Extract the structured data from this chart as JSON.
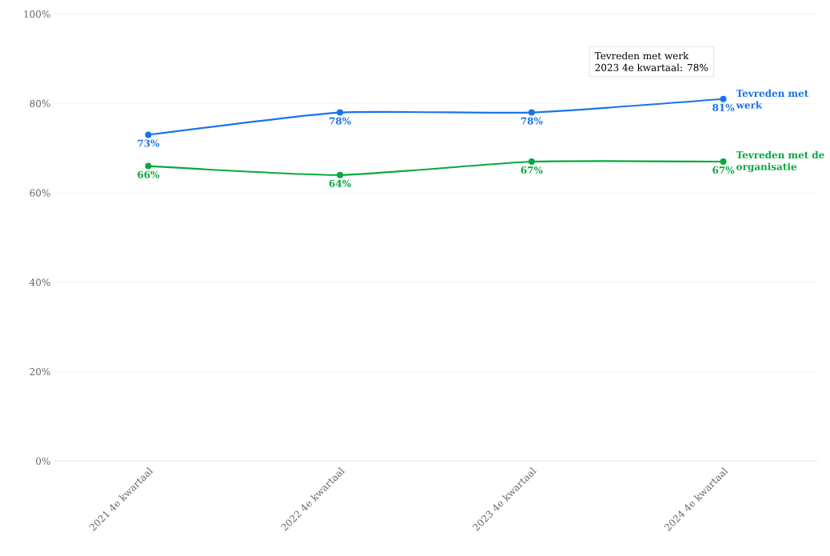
{
  "chart_data": {
    "type": "line",
    "categories": [
      "2021 4e kwartaal",
      "2022 4e kwartaal",
      "2023 4e kwartaal",
      "2024 4e kwartaal"
    ],
    "series": [
      {
        "name": "Tevreden met werk",
        "color": "#1a73e8",
        "values": [
          73,
          78,
          78,
          81
        ],
        "value_labels": [
          "73%",
          "78%",
          "78%",
          "81%"
        ]
      },
      {
        "name": "Tevreden met de organisatie",
        "color": "#0aa83f",
        "values": [
          66,
          64,
          67,
          67
        ],
        "value_labels": [
          "66%",
          "64%",
          "67%",
          "67%"
        ]
      }
    ],
    "ylim": [
      0,
      100
    ],
    "yticks": [
      {
        "value": 0,
        "label": "0%"
      },
      {
        "value": 20,
        "label": "20%"
      },
      {
        "value": 40,
        "label": "40%"
      },
      {
        "value": 60,
        "label": "60%"
      },
      {
        "value": 80,
        "label": "80%"
      },
      {
        "value": 100,
        "label": "100%"
      }
    ],
    "grid": "y",
    "legend": false,
    "marker": "circle",
    "annotations": [
      "Tevreden met werk",
      "2023 4e kwartaal: 78%"
    ]
  }
}
